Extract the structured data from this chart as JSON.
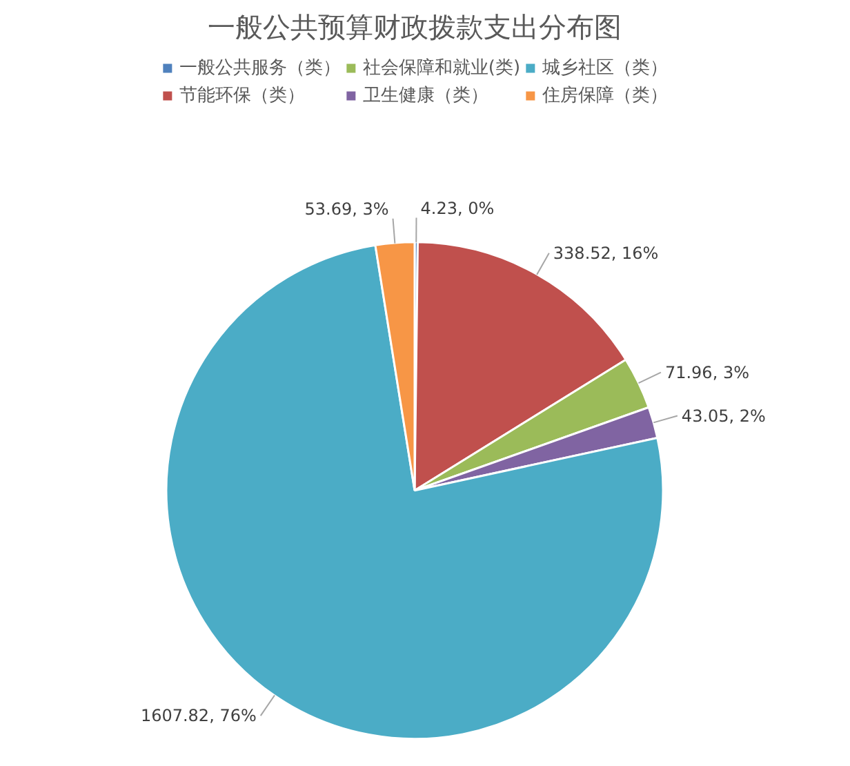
{
  "chart_data": {
    "type": "pie",
    "title": "一般公共预算财政拨款支出分布图",
    "categories": [
      "一般公共服务（类）",
      "节能环保（类）",
      "社会保障和就业(类)",
      "卫生健康（类）",
      "城乡社区（类）",
      "住房保障（类）"
    ],
    "values": [
      4.23,
      338.52,
      71.96,
      43.05,
      1607.82,
      53.69
    ],
    "colors": [
      "#4f81bd",
      "#c0504d",
      "#9bbb59",
      "#8064a2",
      "#4bacc6",
      "#f79646"
    ],
    "value_labels": [
      "4.23, 0%",
      "338.52, 16%",
      "71.96, 3%",
      "43.05, 2%",
      "1607.82, 76%",
      "53.69, 3%"
    ],
    "legend": "top"
  }
}
